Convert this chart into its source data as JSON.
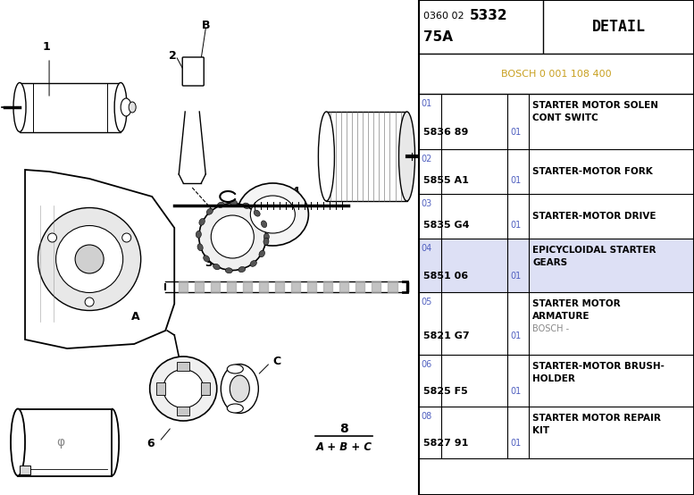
{
  "bosch_ref": "BOSCH 0 001 108 400",
  "bosch_color": "#c8a020",
  "highlight_color": "#dde0f5",
  "rows": [
    {
      "num": "01",
      "code": "5836 89",
      "qty": "01",
      "desc1": "STARTER MOTOR SOLEN",
      "desc2": "CONT SWITC",
      "sub": ""
    },
    {
      "num": "02",
      "code": "5855 A1",
      "qty": "01",
      "desc1": "STARTER-MOTOR FORK",
      "desc2": "",
      "sub": ""
    },
    {
      "num": "03",
      "code": "5835 G4",
      "qty": "01",
      "desc1": "STARTER-MOTOR DRIVE",
      "desc2": "",
      "sub": ""
    },
    {
      "num": "04",
      "code": "5851 06",
      "qty": "01",
      "desc1": "EPICYCLOIDAL STARTER",
      "desc2": "GEARS",
      "sub": ""
    },
    {
      "num": "05",
      "code": "5821 G7",
      "qty": "01",
      "desc1": "STARTER MOTOR",
      "desc2": "ARMATURE",
      "sub": "BOSCH -"
    },
    {
      "num": "06",
      "code": "5825 F5",
      "qty": "01",
      "desc1": "STARTER-MOTOR BRUSH-",
      "desc2": "HOLDER",
      "sub": ""
    },
    {
      "num": "08",
      "code": "5827 91",
      "qty": "01",
      "desc1": "STARTER MOTOR REPAIR",
      "desc2": "KIT",
      "sub": ""
    }
  ],
  "num_color": "#5060c0",
  "qty_color": "#5060c0",
  "sub_color": "#888888",
  "border_color": "#000000",
  "bg_color": "#ffffff"
}
